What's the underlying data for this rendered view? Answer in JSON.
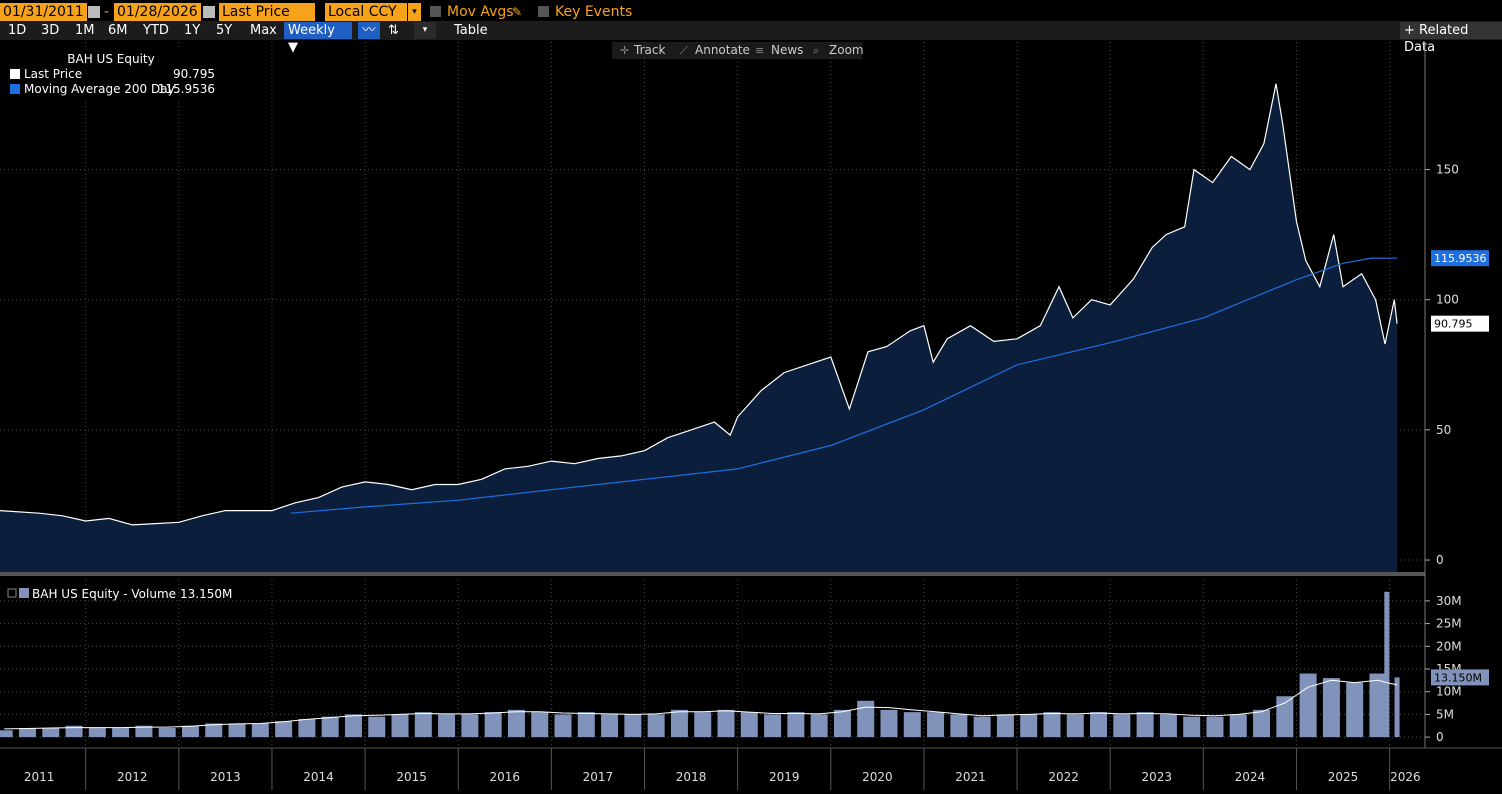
{
  "toolbar": {
    "start_date": "01/31/2011",
    "separator": "-",
    "end_date": "01/28/2026",
    "field": "Last Price",
    "currency": "Local CCY",
    "mov_avgs": "Mov Avgs",
    "key_events": "Key Events",
    "ranges": [
      "1D",
      "3D",
      "1M",
      "6M",
      "YTD",
      "1Y",
      "5Y",
      "Max"
    ],
    "frequency": "Weekly ▼",
    "table": "Table",
    "related": "+ Related Data",
    "tools": [
      "Track",
      "Annotate",
      "News",
      "Zoom"
    ]
  },
  "chart_data": [
    {
      "type": "area",
      "title": "BAH US Equity",
      "xlim": [
        2011.08,
        2026.38
      ],
      "xgrid": [
        2012,
        2013,
        2014,
        2015,
        2016,
        2017,
        2018,
        2019,
        2020,
        2021,
        2022,
        2023,
        2024,
        2025,
        2026
      ],
      "ylim": [
        -4.6,
        199
      ],
      "yticks": [
        0,
        50,
        100,
        150
      ],
      "grid": true,
      "series": [
        {
          "name": "Last Price",
          "color": "#ffffff",
          "fill": "#0b1f3d",
          "x": [
            2011.08,
            2011.5,
            2011.75,
            2012.0,
            2012.25,
            2012.5,
            2012.75,
            2013.0,
            2013.25,
            2013.5,
            2013.75,
            2014.0,
            2014.25,
            2014.5,
            2014.75,
            2015.0,
            2015.25,
            2015.5,
            2015.75,
            2016.0,
            2016.25,
            2016.5,
            2016.75,
            2017.0,
            2017.25,
            2017.5,
            2017.75,
            2018.0,
            2018.25,
            2018.5,
            2018.75,
            2018.92,
            2019.0,
            2019.25,
            2019.5,
            2019.75,
            2020.0,
            2020.2,
            2020.4,
            2020.6,
            2020.85,
            2021.0,
            2021.1,
            2021.25,
            2021.5,
            2021.75,
            2022.0,
            2022.25,
            2022.45,
            2022.6,
            2022.8,
            2023.0,
            2023.25,
            2023.45,
            2023.6,
            2023.8,
            2023.9,
            2024.1,
            2024.3,
            2024.5,
            2024.65,
            2024.78,
            2024.85,
            2025.0,
            2025.1,
            2025.25,
            2025.4,
            2025.5,
            2025.7,
            2025.85,
            2025.95,
            2026.05,
            2026.08
          ],
          "values": [
            19,
            18,
            17,
            15,
            16,
            13.5,
            14,
            14.5,
            17,
            19,
            19,
            19,
            22,
            24,
            28,
            30,
            29,
            27,
            29,
            29,
            31,
            35,
            36,
            38,
            37,
            39,
            40,
            42,
            47,
            50,
            53,
            48,
            55,
            65,
            72,
            75,
            78,
            58,
            80,
            82,
            88,
            90,
            76,
            85,
            90,
            84,
            85,
            90,
            105,
            93,
            100,
            98,
            108,
            120,
            125,
            128,
            150,
            145,
            155,
            150,
            160,
            183,
            168,
            130,
            115,
            105,
            125,
            105,
            110,
            100,
            83,
            100,
            90.795
          ]
        },
        {
          "name": "Moving Average 200 Day",
          "color": "#1f6fe0",
          "x": [
            2014.2,
            2015,
            2016,
            2017,
            2018,
            2019,
            2020,
            2021,
            2022,
            2023,
            2024,
            2025,
            2025.5,
            2025.8,
            2026.08
          ],
          "values": [
            18,
            20.4,
            23,
            27,
            31,
            35,
            44,
            57.7,
            75,
            83.5,
            93,
            107.7,
            114,
            116,
            115.9536
          ]
        }
      ]
    },
    {
      "type": "bar",
      "xlim": [
        2011.08,
        2026.38
      ],
      "xgrid": [
        2012,
        2013,
        2014,
        2015,
        2016,
        2017,
        2018,
        2019,
        2020,
        2021,
        2022,
        2023,
        2024,
        2025,
        2026
      ],
      "xticks": [
        {
          "value": 2011.5,
          "label": "2011"
        },
        {
          "value": 2012.5,
          "label": "2012"
        },
        {
          "value": 2013.5,
          "label": "2013"
        },
        {
          "value": 2014.5,
          "label": "2014"
        },
        {
          "value": 2015.5,
          "label": "2015"
        },
        {
          "value": 2016.5,
          "label": "2016"
        },
        {
          "value": 2017.5,
          "label": "2017"
        },
        {
          "value": 2018.5,
          "label": "2018"
        },
        {
          "value": 2019.5,
          "label": "2019"
        },
        {
          "value": 2020.5,
          "label": "2020"
        },
        {
          "value": 2021.5,
          "label": "2021"
        },
        {
          "value": 2022.5,
          "label": "2022"
        },
        {
          "value": 2023.5,
          "label": "2023"
        },
        {
          "value": 2024.5,
          "label": "2024"
        },
        {
          "value": 2025.5,
          "label": "2025"
        },
        {
          "value": 2026.17,
          "label": "2026"
        }
      ],
      "ylim": [
        -2.4,
        34.6
      ],
      "yticks": [
        0,
        {
          "value": 5,
          "label": "5M"
        },
        {
          "value": 10,
          "label": "10M"
        },
        {
          "value": 15,
          "label": "15M"
        },
        {
          "value": 20,
          "label": "20M"
        },
        {
          "value": 25,
          "label": "25M"
        },
        {
          "value": 30,
          "label": "30M"
        }
      ],
      "grid": true,
      "x": [
        2011.125,
        2011.375,
        2011.625,
        2011.875,
        2012.125,
        2012.375,
        2012.625,
        2012.875,
        2013.125,
        2013.375,
        2013.625,
        2013.875,
        2014.125,
        2014.375,
        2014.625,
        2014.875,
        2015.125,
        2015.375,
        2015.625,
        2015.875,
        2016.125,
        2016.375,
        2016.625,
        2016.875,
        2017.125,
        2017.375,
        2017.625,
        2017.875,
        2018.125,
        2018.375,
        2018.625,
        2018.875,
        2019.125,
        2019.375,
        2019.625,
        2019.875,
        2020.125,
        2020.375,
        2020.625,
        2020.875,
        2021.125,
        2021.375,
        2021.625,
        2021.875,
        2022.125,
        2022.375,
        2022.625,
        2022.875,
        2023.125,
        2023.375,
        2023.625,
        2023.875,
        2024.125,
        2024.375,
        2024.625,
        2024.875,
        2025.125,
        2025.375,
        2025.625,
        2025.875,
        2025.97,
        2026.08
      ],
      "series": [
        {
          "name": "BAH US Equity - Volume",
          "color": "#8193bb",
          "values": [
            1.5,
            2,
            2,
            2.5,
            2,
            2,
            2.5,
            2,
            2.5,
            3,
            3,
            3,
            3.5,
            4,
            4.5,
            5,
            4.5,
            5,
            5.5,
            5,
            5,
            5.5,
            6,
            5.5,
            5,
            5.5,
            5,
            5,
            5,
            6,
            5.5,
            6,
            5.5,
            5,
            5.5,
            5,
            6,
            8,
            6,
            5.5,
            5.5,
            5,
            4.5,
            5,
            5,
            5.5,
            5,
            5.5,
            5,
            5.5,
            5,
            4.5,
            4.5,
            5,
            6,
            9,
            14,
            13,
            12,
            14,
            32,
            13.15
          ],
          "value_labels": [
            null,
            null,
            null,
            null,
            null,
            null,
            null,
            null,
            null,
            null,
            null,
            null,
            null,
            null,
            null,
            null,
            null,
            null,
            null,
            null,
            null,
            null,
            null,
            null,
            null,
            null,
            null,
            null,
            null,
            null,
            null,
            null,
            null,
            null,
            null,
            null,
            null,
            null,
            null,
            null,
            null,
            null,
            null,
            null,
            null,
            null,
            null,
            null,
            null,
            null,
            null,
            null,
            null,
            null,
            null,
            null,
            null,
            null,
            null,
            null,
            null,
            "13.150M"
          ]
        },
        {
          "color": "#ffffff",
          "type": "line",
          "values": [
            1.8,
            1.9,
            2,
            2.1,
            2.1,
            2.1,
            2.2,
            2.2,
            2.4,
            2.7,
            2.9,
            3,
            3.4,
            3.9,
            4.3,
            4.7,
            4.8,
            5,
            5.2,
            5.1,
            5.1,
            5.3,
            5.6,
            5.6,
            5.3,
            5.2,
            5.1,
            5,
            5.1,
            5.6,
            5.6,
            5.8,
            5.5,
            5.2,
            5.2,
            5.1,
            5.6,
            6.6,
            6.5,
            6,
            5.6,
            5.1,
            4.7,
            4.9,
            5,
            5.2,
            5.1,
            5.3,
            5.1,
            5.2,
            5.1,
            4.8,
            4.7,
            5,
            5.6,
            7.5,
            11,
            12.5,
            12,
            12.5,
            12,
            11.5
          ]
        }
      ]
    }
  ]
}
